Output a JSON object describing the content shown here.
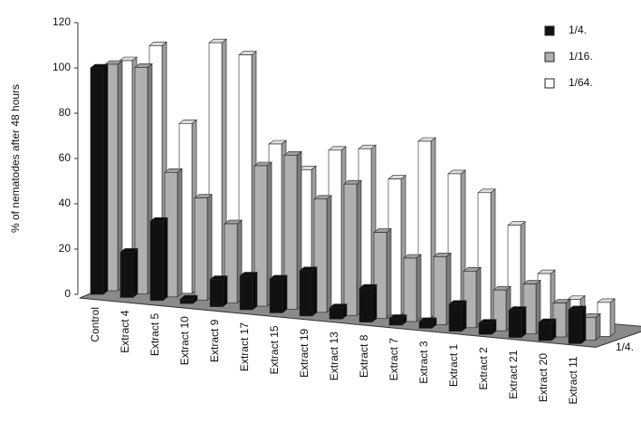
{
  "chart_data": {
    "type": "bar3d",
    "y_label": "% of nematodes after 48 hours",
    "z_label": "1/4.",
    "categories": [
      "Control",
      "Extract 4",
      "Extract 5",
      "Extract 10",
      "Extract 9",
      "Extract 17",
      "Extract 15",
      "Extract 19",
      "Extract 13",
      "Extract  8",
      "Extract 7",
      "Extract 3",
      "Extract 1",
      "Extract 2",
      "Extract 21",
      "Extract 20",
      "Extract 11"
    ],
    "series": [
      {
        "name": "1/4.",
        "color": "#111111",
        "values": [
          100,
          20,
          35,
          2,
          12,
          15,
          15,
          20,
          5,
          15,
          3,
          3,
          12,
          5,
          12,
          8,
          15
        ]
      },
      {
        "name": "1/16.",
        "color": "#b0b0b0",
        "values": [
          100,
          100,
          55,
          45,
          35,
          62,
          68,
          50,
          58,
          38,
          28,
          30,
          25,
          18,
          22,
          15,
          10
        ]
      },
      {
        "name": "1/64.",
        "color": "#ffffff",
        "values": [
          100,
          108,
          75,
          112,
          108,
          70,
          60,
          70,
          72,
          60,
          78,
          65,
          58,
          45,
          25,
          15,
          15
        ]
      }
    ],
    "ylim": [
      0,
      120
    ],
    "yticks": [
      0,
      20,
      40,
      60,
      80,
      100,
      120
    ]
  }
}
